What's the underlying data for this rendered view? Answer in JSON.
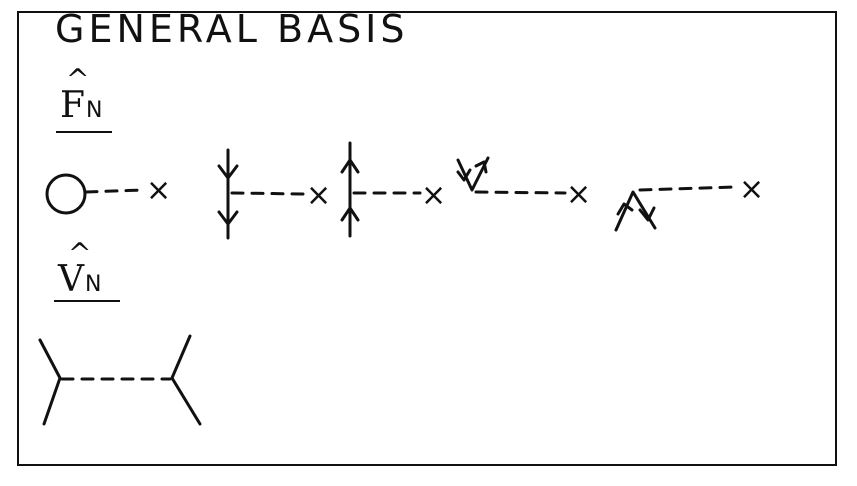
{
  "title": "GENERAL BASIS",
  "labels": {
    "f": {
      "symbol": "F",
      "hat": "^",
      "subscript": "N"
    },
    "v": {
      "symbol": "V",
      "hat": "^",
      "subscript": "N"
    }
  },
  "diagram_marks": {
    "vertex_marker": "×"
  }
}
